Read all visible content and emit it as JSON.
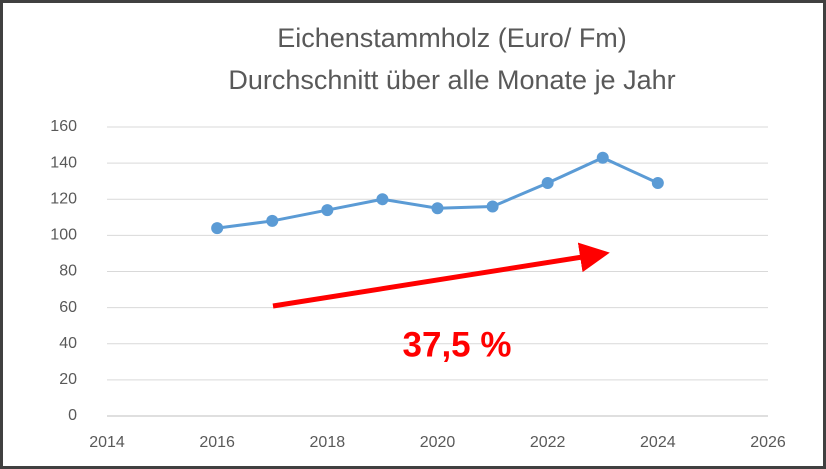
{
  "chart_data": {
    "type": "line",
    "title": "Eichenstammholz (Euro/ Fm)",
    "subtitle": "Durchschnitt über alle Monate je Jahr",
    "x": [
      2016,
      2017,
      2018,
      2019,
      2020,
      2021,
      2022,
      2023,
      2024
    ],
    "series": [
      {
        "color": "#5b9bd5",
        "values": [
          104,
          108,
          114,
          120,
          115,
          116,
          129,
          143,
          129
        ]
      }
    ],
    "xlim": [
      2014,
      2026
    ],
    "xticks": [
      2014,
      2016,
      2018,
      2020,
      2022,
      2024,
      2026
    ],
    "ylim": [
      0,
      160
    ],
    "yticks": [
      0,
      20,
      40,
      60,
      80,
      100,
      120,
      140,
      160
    ],
    "grid": true,
    "annotations": [
      {
        "text": "37,5 %",
        "color": "#ff0000"
      }
    ]
  }
}
